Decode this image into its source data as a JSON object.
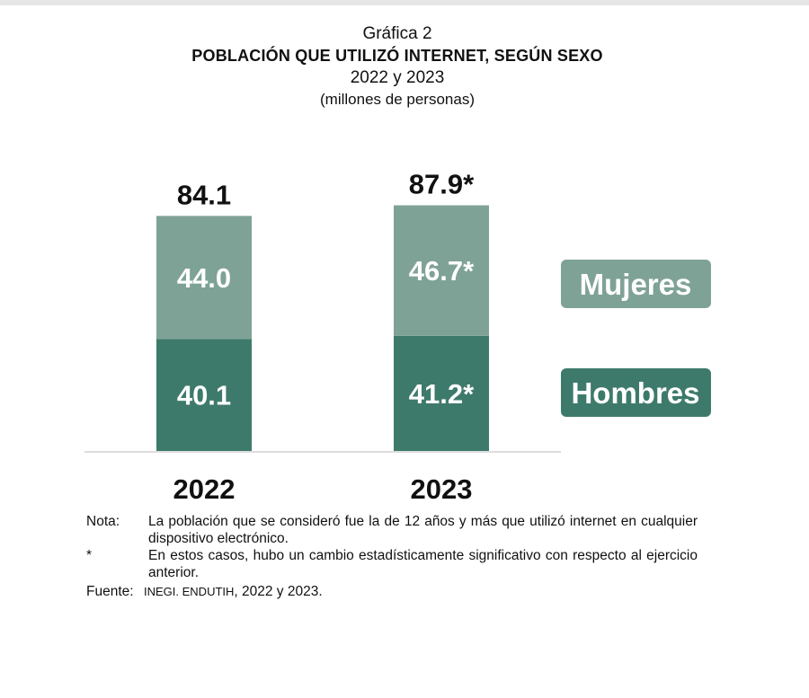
{
  "header": {
    "label": "Gráfica 2",
    "title": "POBLACIÓN QUE UTILIZÓ INTERNET, SEGÚN SEXO",
    "years": "2022 y 2023",
    "units": "(millones de personas)"
  },
  "chart_data": {
    "type": "bar",
    "stacked": true,
    "categories": [
      "2022",
      "2023"
    ],
    "series": [
      {
        "name": "Hombres",
        "values": [
          40.1,
          41.2
        ],
        "labels": [
          "40.1",
          "41.2*"
        ],
        "color": "#3e7a6b"
      },
      {
        "name": "Mujeres",
        "values": [
          44.0,
          46.7
        ],
        "labels": [
          "44.0",
          "46.7*"
        ],
        "color": "#7fa296"
      }
    ],
    "totals": [
      84.1,
      87.9
    ],
    "total_labels": [
      "84.1",
      "87.9*"
    ],
    "legend_position": "right",
    "ylim": [
      0,
      90
    ],
    "grid": false
  },
  "notes": {
    "nota_key": "Nota:",
    "nota_text": "La población que se consideró fue la de 12 años y más que utilizó internet en cualquier dispositivo electrónico.",
    "star_key": "*",
    "star_text": "En estos casos, hubo un cambio estadísticamente significativo con respecto al ejercicio anterior.",
    "source_key": "Fuente:",
    "source_org": "INEGI. ENDUTIH",
    "source_years": ", 2022 y 2023."
  }
}
